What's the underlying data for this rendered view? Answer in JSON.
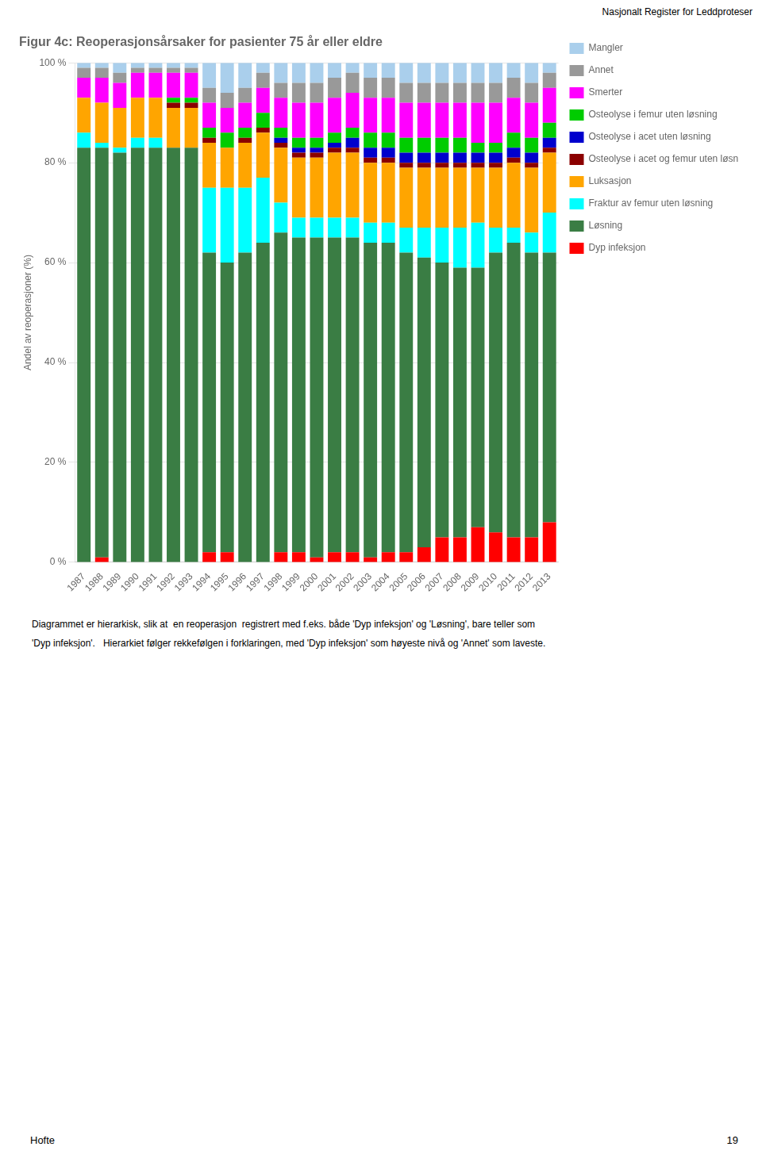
{
  "chart_data": {
    "type": "bar",
    "title": "Figur 4c: Reoperasjonsårsaker for pasienter 75 år eller eldre",
    "subtitle": "Nasjonalt Register for Leddproteser",
    "ylabel": "Andel av reoperasjoner (%)",
    "annotations": [
      "Diagrammet er hierarkisk, slik at  en reoperasjon  registrert med f.eks. både 'Dyp infeksjon' og 'Løsning', bare teller som",
      "'Dyp infeksjon'.   Hierarkiet følger rekkefølgen i forklaringen, med 'Dyp infeksjon' som høyeste nivå og 'Annet' som laveste.",
      "Hofte",
      "19"
    ],
    "categories": [
      "1987",
      "1988",
      "1989",
      "1990",
      "1991",
      "1992",
      "1993",
      "1994",
      "1995",
      "1996",
      "1997",
      "1998",
      "1999",
      "2000",
      "2001",
      "2002",
      "2003",
      "2004",
      "2005",
      "2006",
      "2007",
      "2008",
      "2009",
      "2010",
      "2011",
      "2012",
      "2013"
    ],
    "series": [
      {
        "name": "Dyp infeksjon",
        "color": "#FF0000",
        "values": [
          0,
          1,
          0,
          0,
          0,
          0,
          0,
          2,
          2,
          0,
          0,
          2,
          2,
          1,
          2,
          2,
          1,
          2,
          2,
          3,
          5,
          5,
          7,
          6,
          5,
          5,
          8
        ]
      },
      {
        "name": "Løsning",
        "color": "#3A7D44",
        "values": [
          83,
          82,
          82,
          83,
          83,
          83,
          83,
          60,
          58,
          62,
          64,
          64,
          63,
          64,
          63,
          63,
          63,
          62,
          60,
          58,
          55,
          54,
          52,
          56,
          59,
          57,
          54
        ]
      },
      {
        "name": "Fraktur av femur uten løsning",
        "color": "#00FFFF",
        "values": [
          3,
          1,
          1,
          2,
          2,
          0,
          0,
          13,
          15,
          13,
          13,
          6,
          4,
          4,
          4,
          4,
          4,
          4,
          5,
          6,
          7,
          8,
          9,
          5,
          3,
          4,
          8
        ]
      },
      {
        "name": "Luksasjon",
        "color": "#FFA500",
        "values": [
          7,
          8,
          8,
          8,
          8,
          8,
          8,
          9,
          8,
          9,
          9,
          11,
          12,
          12,
          13,
          13,
          12,
          12,
          12,
          12,
          12,
          12,
          11,
          12,
          13,
          13,
          12
        ]
      },
      {
        "name": "Osteolyse i acet og femur uten løsning",
        "color": "#8B0000",
        "values": [
          0,
          0,
          0,
          0,
          0,
          1,
          1,
          1,
          0,
          1,
          1,
          1,
          1,
          1,
          1,
          1,
          1,
          1,
          1,
          1,
          1,
          1,
          1,
          1,
          1,
          1,
          1
        ]
      },
      {
        "name": "Osteolyse i acet uten løsning",
        "color": "#0000CD",
        "values": [
          0,
          0,
          0,
          0,
          0,
          0,
          0,
          0,
          0,
          0,
          0,
          1,
          1,
          1,
          1,
          2,
          2,
          2,
          2,
          2,
          2,
          2,
          2,
          2,
          2,
          2,
          2
        ]
      },
      {
        "name": "Osteolyse i femur uten løsning",
        "color": "#00CC00",
        "values": [
          0,
          0,
          0,
          0,
          0,
          1,
          1,
          2,
          3,
          2,
          3,
          2,
          2,
          2,
          2,
          2,
          3,
          3,
          3,
          3,
          3,
          3,
          2,
          2,
          3,
          3,
          3
        ]
      },
      {
        "name": "Smerter",
        "color": "#FF00FF",
        "values": [
          4,
          5,
          5,
          5,
          5,
          5,
          5,
          5,
          5,
          5,
          5,
          6,
          7,
          7,
          7,
          7,
          7,
          7,
          7,
          7,
          7,
          7,
          8,
          8,
          7,
          7,
          7
        ]
      },
      {
        "name": "Annet",
        "color": "#999999",
        "values": [
          2,
          2,
          2,
          1,
          1,
          1,
          1,
          3,
          3,
          3,
          3,
          3,
          4,
          4,
          4,
          4,
          4,
          4,
          4,
          4,
          4,
          4,
          4,
          4,
          4,
          4,
          3
        ]
      },
      {
        "name": "Mangler",
        "color": "#AACFEC",
        "values": [
          1,
          1,
          2,
          1,
          1,
          1,
          1,
          5,
          6,
          5,
          2,
          4,
          4,
          4,
          3,
          2,
          3,
          3,
          4,
          4,
          4,
          4,
          4,
          4,
          3,
          4,
          2
        ]
      }
    ],
    "stacked": true,
    "ylim": [
      0,
      100
    ],
    "yticks": [
      {
        "value": 0,
        "label": "0 %"
      },
      {
        "value": 20,
        "label": "20 %"
      },
      {
        "value": 40,
        "label": "40 %"
      },
      {
        "value": 60,
        "label": "60 %"
      },
      {
        "value": 80,
        "label": "80 %"
      },
      {
        "value": 100,
        "label": "100 %"
      }
    ],
    "grid": true,
    "legend": "right"
  }
}
